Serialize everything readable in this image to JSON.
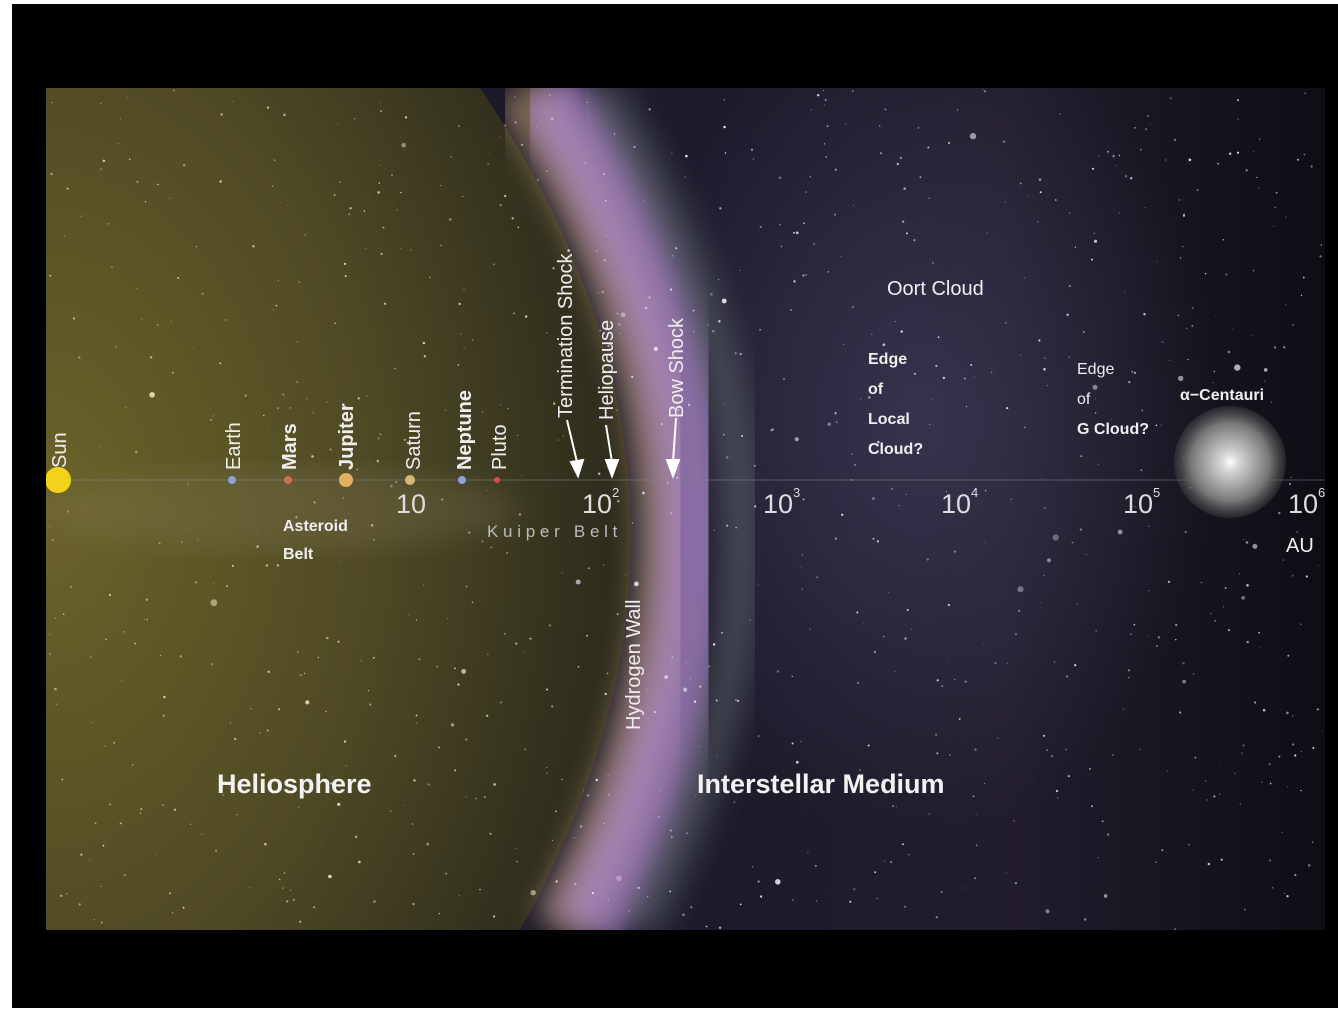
{
  "bodies": {
    "sun": "Sun",
    "earth": "Earth",
    "mars": "Mars",
    "jupiter": "Jupiter",
    "saturn": "Saturn",
    "neptune": "Neptune",
    "pluto": "Pluto"
  },
  "regions": {
    "asteroid_belt": [
      "Asteroid",
      "Belt"
    ],
    "kuiper_belt": "K u i p e r   B e l t",
    "termination_shock": "Termination Shock",
    "heliopause": "Heliopause",
    "bow_shock": "Bow Shock",
    "hydrogen_wall": "Hydrogen Wall",
    "oort_cloud": "Oort Cloud",
    "edge_local_cloud": [
      "Edge",
      "of",
      "Local",
      "Cloud?"
    ],
    "edge_g_cloud": [
      "Edge",
      "of",
      "G Cloud?"
    ],
    "alpha_centauri": "α−Centauri",
    "heliosphere": "Heliosphere",
    "interstellar_medium": "Interstellar Medium"
  },
  "scale": {
    "ticks": [
      {
        "base": "10"
      },
      {
        "base": "10",
        "exp": "2"
      },
      {
        "base": "10",
        "exp": "3"
      },
      {
        "base": "10",
        "exp": "4"
      },
      {
        "base": "10",
        "exp": "5"
      },
      {
        "base": "10",
        "exp": "6"
      }
    ],
    "unit": "AU"
  }
}
